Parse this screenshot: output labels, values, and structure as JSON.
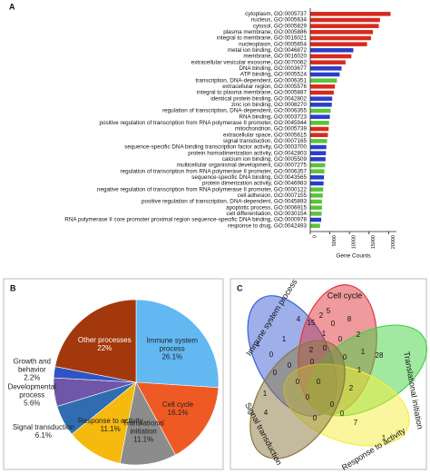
{
  "chart_data": [
    {
      "type": "barh",
      "panel_label": "A",
      "x_label": "Gene Counts",
      "categories": [
        "cytoplasm, GO:0005737",
        "nucleus, GO:0005634",
        "cytosol, GO:0005829",
        "plasma membrane, GO:0005886",
        "integral to membrane, GO:0016021",
        "nucleoplasm, GO:0005654",
        "metal ion binding, GO:0046872",
        "membrane, GO:0016020",
        "extracellular vesicular exosome, GO:0070062",
        "DNA binding, GO:0003677",
        "ATP binding, GO:0005524",
        "transcription, DNA-dependent, GO:0006351",
        "extracellular region, GO:0005576",
        "integral to plasma membrane, GO:0005887",
        "identical protein binding, GO:0042802",
        "zinc ion binding, GO:0008270",
        "regulation of transcription, DNA-dependent, GO:0006355",
        "RNA binding, GO:0003723",
        "positive regulation of transcription from RNA polymerase II promoter, GO:0045944",
        "mitochondrion, GO:0005739",
        "extracellular space, GO:0005615",
        "signal transduction, GO:0007165",
        "sequence-specific DNA binding transcription factor activity, GO:0003700",
        "protein homodimerization activity, GO:0042803",
        "calcium ion binding, GO:0005509",
        "multicellular organismal development, GO:0007275",
        "regulation of transcription from RNA polymerase II promoter, GO:0006357",
        "sequence-specific DNA binding, GO:0043565",
        "protein dimerization activity, GO:0046983",
        "negative regulation of transcription from RNA polymerase II promoter, GO:0000122",
        "cell adhesion, GO:0007155",
        "positive regulation of transcription, DNA-dependent, GO:0045893",
        "apoptotic process, GO:0006915",
        "cell differentiation, GO:0030154",
        "RNA polymerase II core promoter proximal region sequence-specific DNA binding, GO:0000978",
        "response to drug, GO:0042493"
      ],
      "values": [
        20500,
        17800,
        17500,
        16000,
        15500,
        14500,
        11000,
        10500,
        9000,
        8000,
        7500,
        6800,
        6300,
        6000,
        5600,
        5500,
        5200,
        5000,
        4800,
        4700,
        4500,
        4300,
        4100,
        4000,
        3900,
        3800,
        3600,
        3500,
        3400,
        3300,
        3200,
        3000,
        3000,
        2900,
        2800,
        2500
      ],
      "colors": [
        "#d62a1e",
        "#d62a1e",
        "#d62a1e",
        "#d62a1e",
        "#d62a1e",
        "#d62a1e",
        "#2a3ec8",
        "#d62a1e",
        "#d62a1e",
        "#2a3ec8",
        "#2a3ec8",
        "#5cc23a",
        "#d62a1e",
        "#d62a1e",
        "#2a3ec8",
        "#2a3ec8",
        "#5cc23a",
        "#2a3ec8",
        "#5cc23a",
        "#d62a1e",
        "#d62a1e",
        "#5cc23a",
        "#2a3ec8",
        "#2a3ec8",
        "#2a3ec8",
        "#5cc23a",
        "#5cc23a",
        "#2a3ec8",
        "#2a3ec8",
        "#5cc23a",
        "#5cc23a",
        "#5cc23a",
        "#5cc23a",
        "#5cc23a",
        "#2a3ec8",
        "#5cc23a"
      ],
      "xlim": [
        0,
        22000
      ],
      "xticks": [
        0,
        5000,
        10000,
        15000,
        20000
      ]
    },
    {
      "type": "pie",
      "panel_label": "B",
      "categories": [
        "Immune system process",
        "Cell cycle",
        "Translational initiation",
        "Response to activity",
        "Signal transduction",
        "Developmental process",
        "Growth and behavior",
        "Other processes"
      ],
      "values": [
        26.1,
        16.1,
        11.1,
        11.1,
        6.1,
        5.6,
        2.2,
        22
      ],
      "value_labels": [
        "26.1%",
        "16.1%",
        "11.1%",
        "11.1%",
        "6.1%",
        "5.6%",
        "2.2%",
        "22%"
      ],
      "colors": [
        "#62b9f2",
        "#ef5a24",
        "#8c8c8c",
        "#f6b90e",
        "#2f6db0",
        "#6f56a8",
        "#2f55c4",
        "#a3380c"
      ]
    }
  ],
  "venn": {
    "panel_label": "C",
    "sets": [
      {
        "name": "Immune system process",
        "color": "#3d5fd6"
      },
      {
        "name": "Cell cycle",
        "color": "#e0353a"
      },
      {
        "name": "Translational initiation",
        "color": "#43d343"
      },
      {
        "name": "Response to activity",
        "color": "#f4ee3c"
      },
      {
        "name": "Signal transduction",
        "color": "#8a7840"
      }
    ],
    "regions": [
      5,
      4,
      4,
      1,
      15,
      2,
      0,
      8,
      2,
      28,
      0,
      1,
      0,
      1,
      0,
      2,
      0,
      0,
      0,
      0,
      1,
      1,
      0,
      0,
      2,
      4,
      0,
      0,
      0,
      7,
      0,
      1
    ]
  }
}
